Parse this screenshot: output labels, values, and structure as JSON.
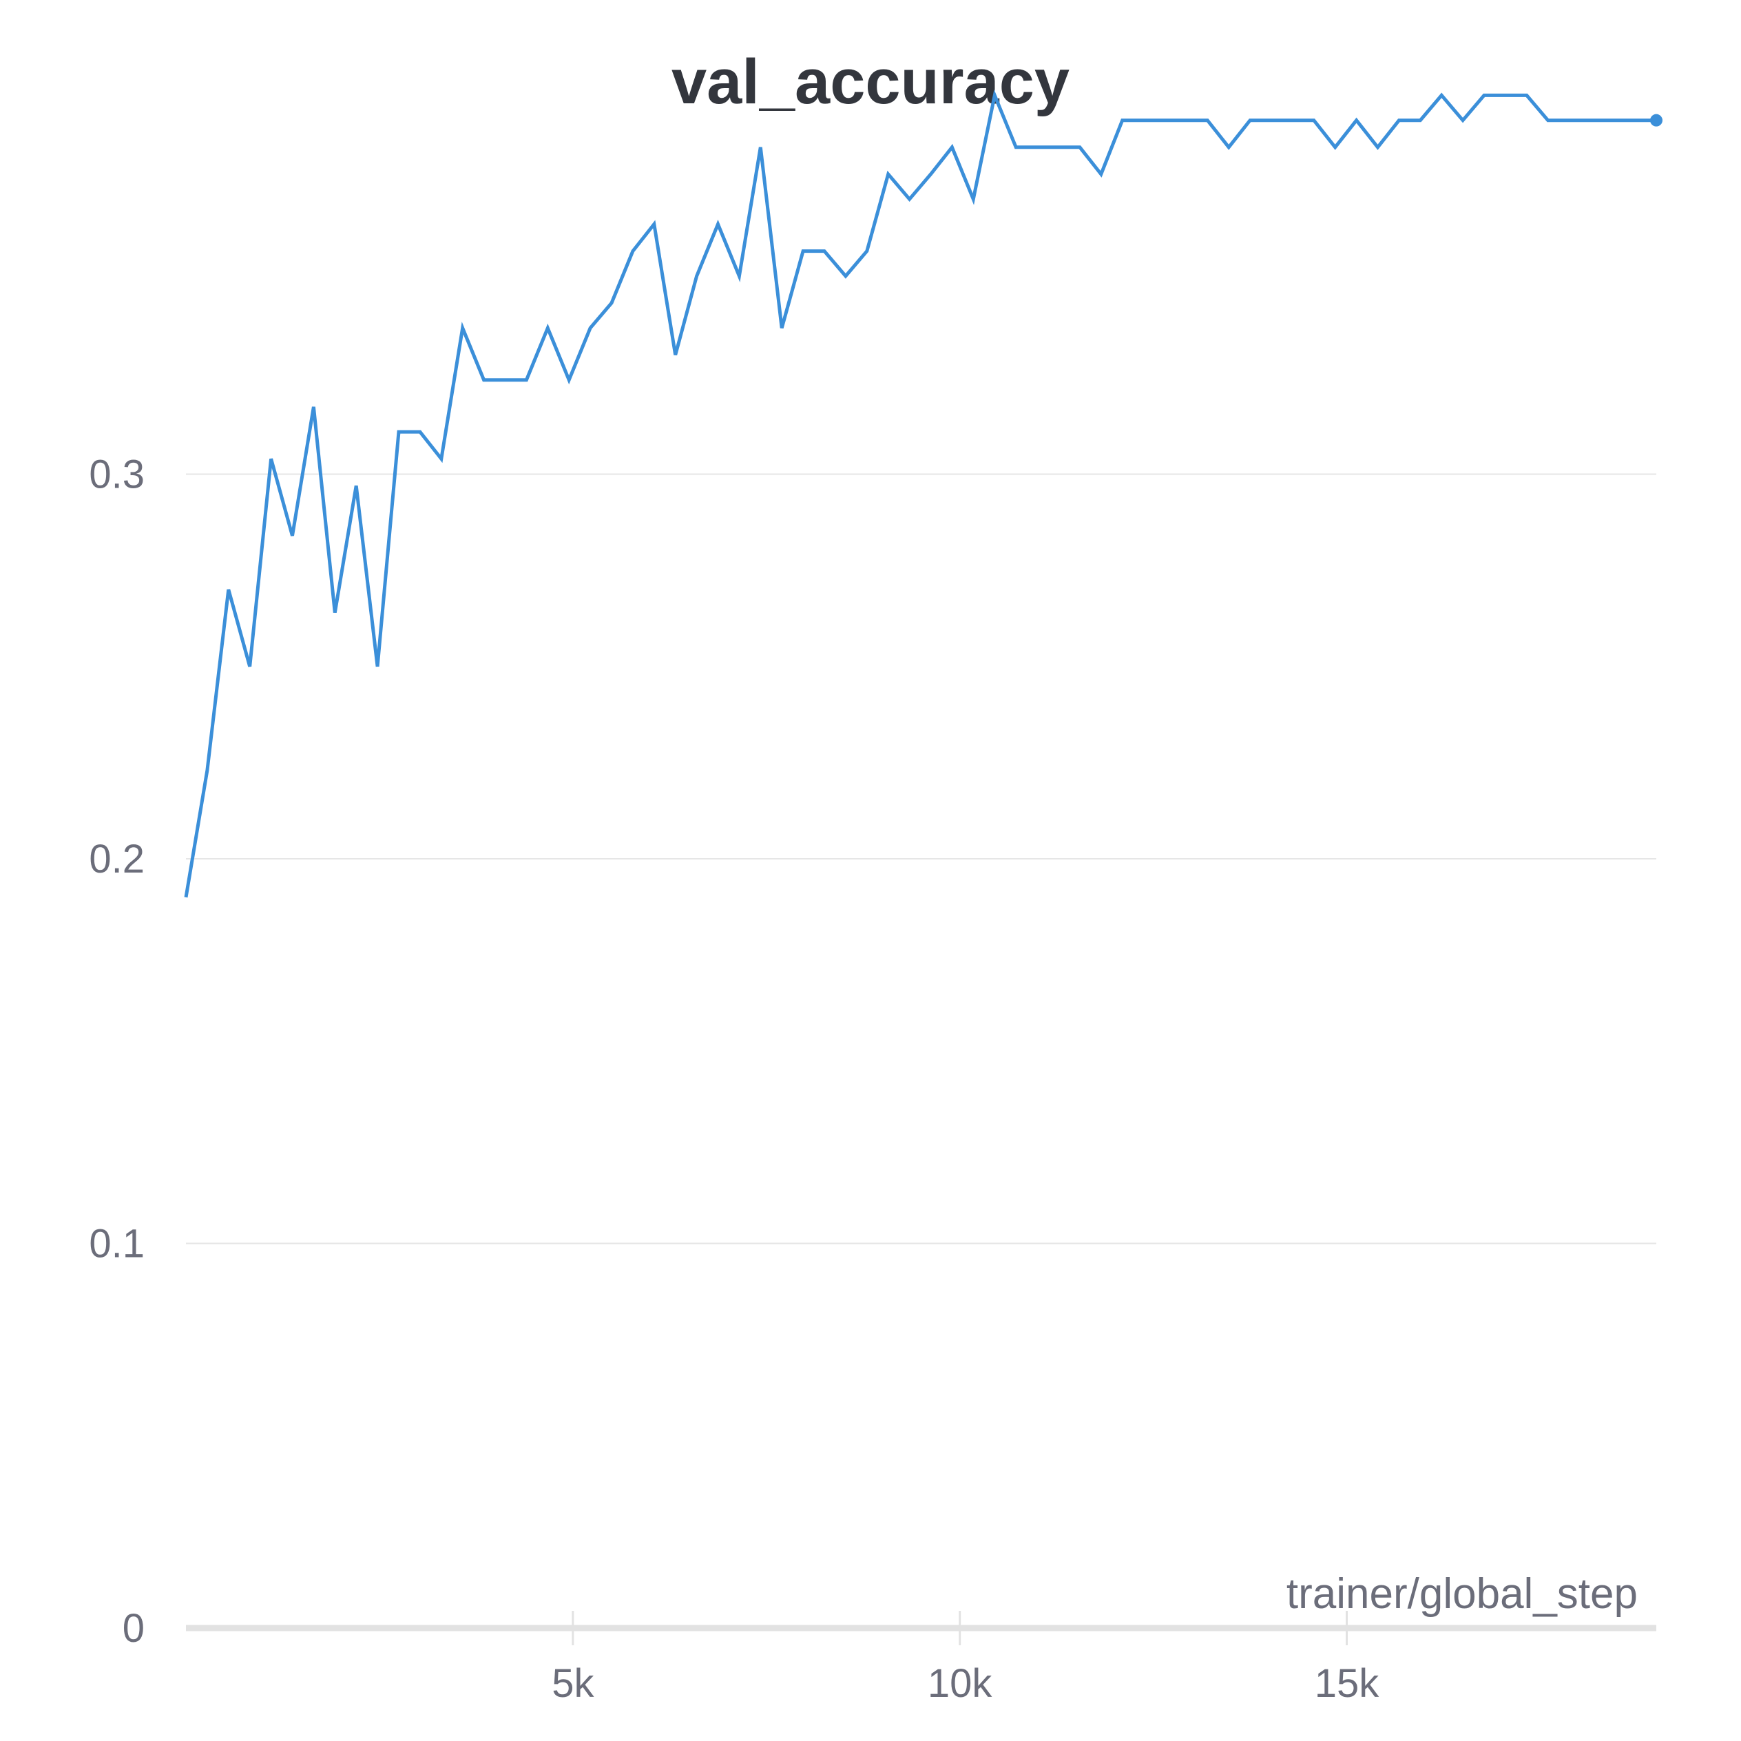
{
  "chart_data": {
    "type": "line",
    "title": "val_accuracy",
    "xlabel": "trainer/global_step",
    "ylabel": "",
    "xlim": [
      0,
      19000
    ],
    "ylim": [
      0,
      0.4
    ],
    "x_ticks": [
      {
        "value": 5000,
        "label": "5k"
      },
      {
        "value": 10000,
        "label": "10k"
      },
      {
        "value": 15000,
        "label": "15k"
      }
    ],
    "y_ticks": [
      {
        "value": 0,
        "label": "0"
      },
      {
        "value": 0.1,
        "label": "0.1"
      },
      {
        "value": 0.2,
        "label": "0.2"
      },
      {
        "value": 0.3,
        "label": "0.3"
      }
    ],
    "grid": true,
    "series": [
      {
        "name": "val_accuracy",
        "color": "#3b8fd9",
        "points": [
          [
            0,
            0.19
          ],
          [
            275,
            0.223
          ],
          [
            550,
            0.27
          ],
          [
            825,
            0.25
          ],
          [
            1100,
            0.304
          ],
          [
            1375,
            0.284
          ],
          [
            1650,
            0.3175
          ],
          [
            1925,
            0.264
          ],
          [
            2200,
            0.297
          ],
          [
            2475,
            0.25
          ],
          [
            2750,
            0.311
          ],
          [
            3025,
            0.311
          ],
          [
            3300,
            0.304
          ],
          [
            3575,
            0.338
          ],
          [
            3850,
            0.3245
          ],
          [
            4125,
            0.3245
          ],
          [
            4400,
            0.3245
          ],
          [
            4675,
            0.338
          ],
          [
            4950,
            0.3245
          ],
          [
            5225,
            0.338
          ],
          [
            5500,
            0.3445
          ],
          [
            5775,
            0.358
          ],
          [
            6050,
            0.365
          ],
          [
            6325,
            0.331
          ],
          [
            6600,
            0.3515
          ],
          [
            6875,
            0.365
          ],
          [
            7150,
            0.3515
          ],
          [
            7425,
            0.385
          ],
          [
            7700,
            0.338
          ],
          [
            7975,
            0.358
          ],
          [
            8250,
            0.358
          ],
          [
            8525,
            0.3515
          ],
          [
            8800,
            0.358
          ],
          [
            9075,
            0.378
          ],
          [
            9350,
            0.3715
          ],
          [
            9625,
            0.378
          ],
          [
            9900,
            0.385
          ],
          [
            10175,
            0.3715
          ],
          [
            10450,
            0.3985
          ],
          [
            10725,
            0.385
          ],
          [
            11000,
            0.385
          ],
          [
            11275,
            0.385
          ],
          [
            11550,
            0.385
          ],
          [
            11825,
            0.378
          ],
          [
            12100,
            0.392
          ],
          [
            12375,
            0.392
          ],
          [
            12650,
            0.392
          ],
          [
            12925,
            0.392
          ],
          [
            13200,
            0.392
          ],
          [
            13475,
            0.385
          ],
          [
            13750,
            0.392
          ],
          [
            14025,
            0.392
          ],
          [
            14300,
            0.392
          ],
          [
            14575,
            0.392
          ],
          [
            14850,
            0.385
          ],
          [
            15125,
            0.392
          ],
          [
            15400,
            0.385
          ],
          [
            15675,
            0.392
          ],
          [
            15950,
            0.392
          ],
          [
            16225,
            0.3985
          ],
          [
            16500,
            0.392
          ],
          [
            16775,
            0.3985
          ],
          [
            17050,
            0.3985
          ],
          [
            17325,
            0.3985
          ],
          [
            17600,
            0.392
          ],
          [
            17875,
            0.392
          ],
          [
            18150,
            0.392
          ],
          [
            18425,
            0.392
          ],
          [
            18700,
            0.392
          ],
          [
            19000,
            0.392
          ]
        ]
      }
    ]
  }
}
